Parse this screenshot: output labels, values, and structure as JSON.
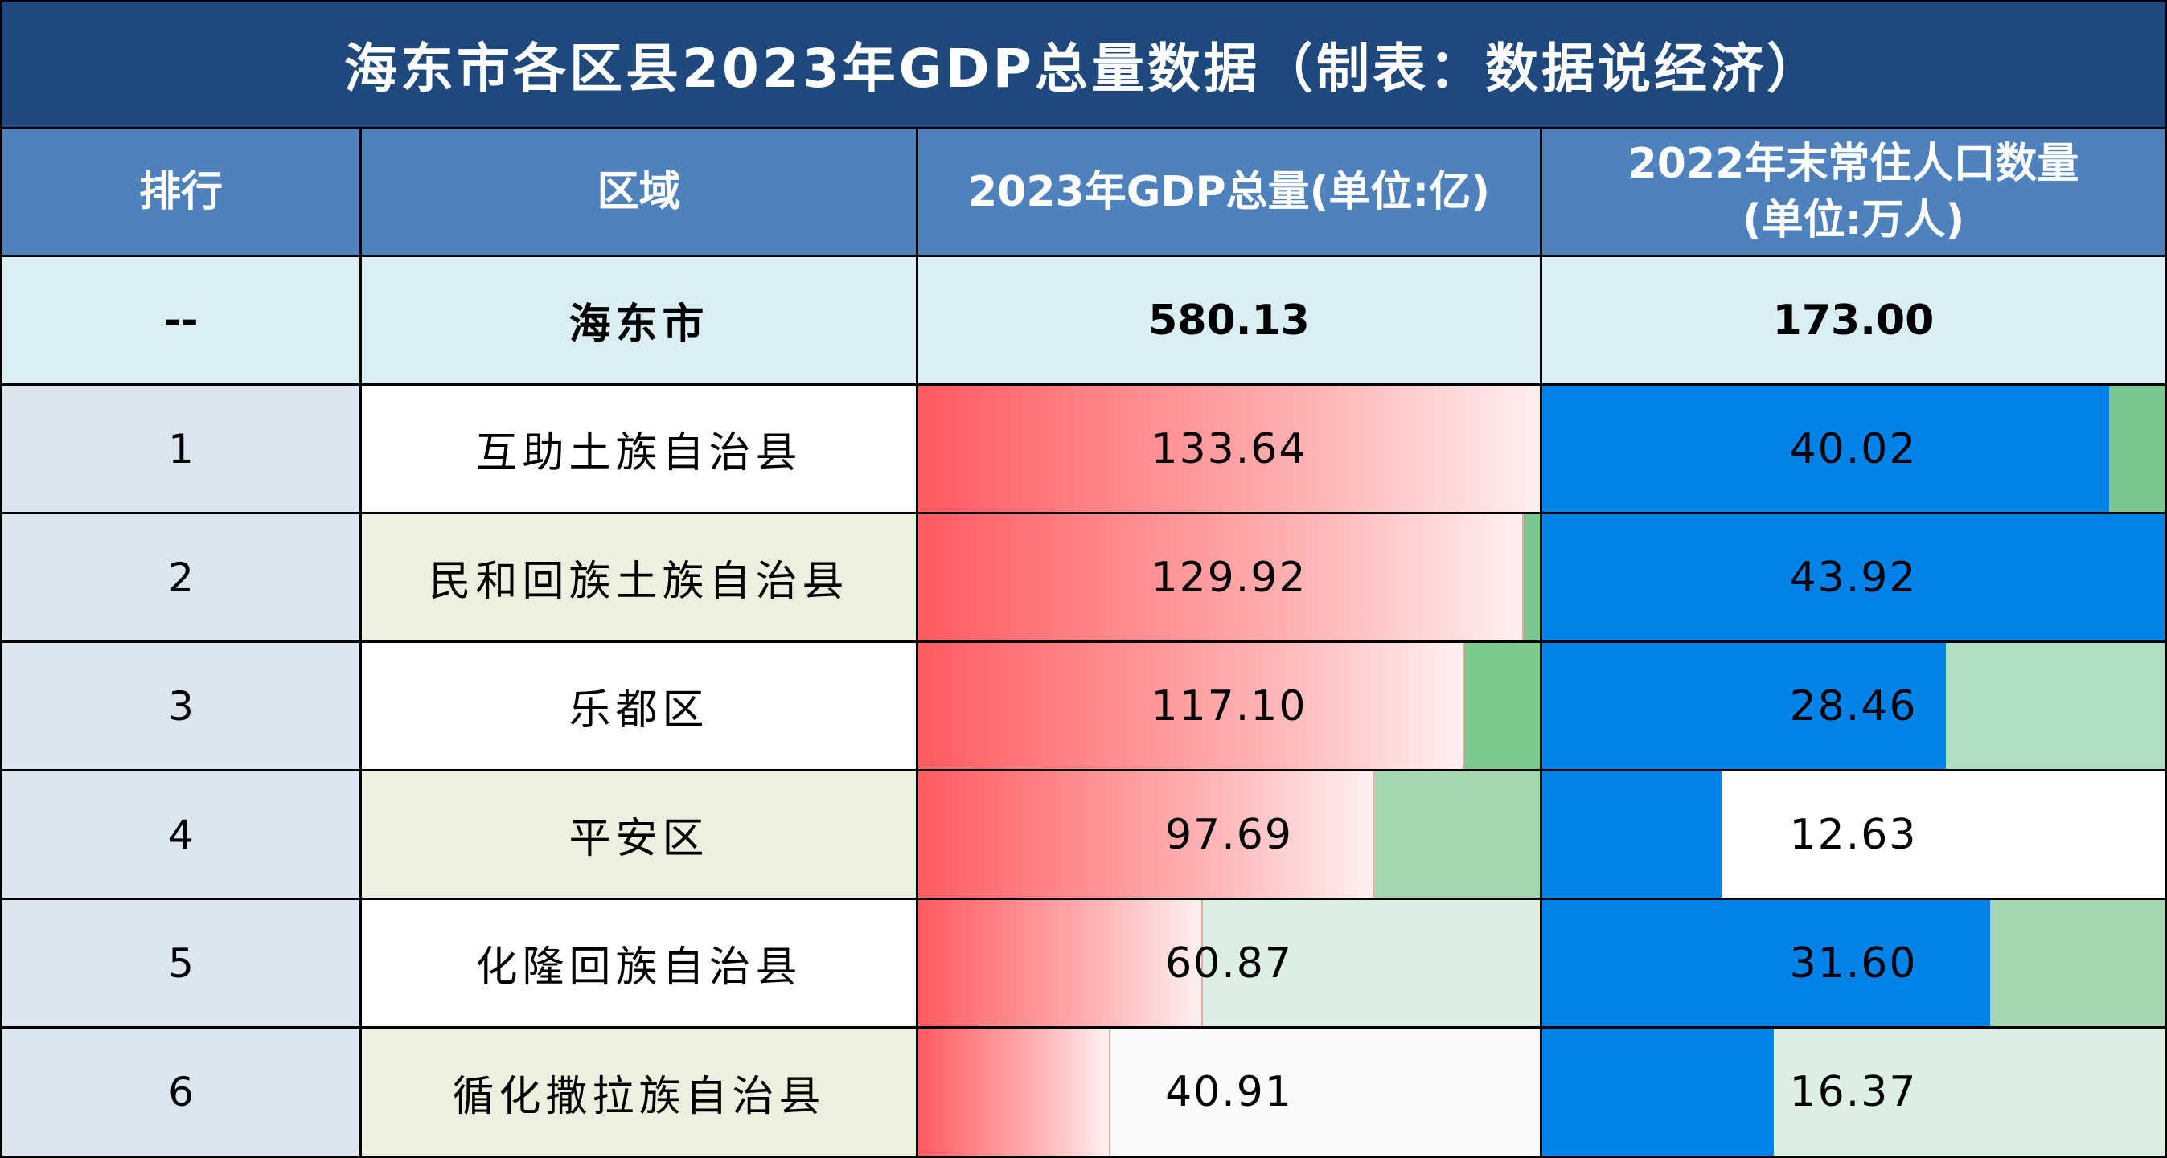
{
  "title": "海东市各区县2023年GDP总量数据（制表：数据说经济）",
  "headers": {
    "rank": "排行",
    "region": "区域",
    "gdp": "2023年GDP总量(单位:亿)",
    "pop_line1": "2022年末常住人口数量",
    "pop_line2": "(单位:万人)"
  },
  "total_row": {
    "rank": "--",
    "region": "海东市",
    "gdp": "580.13",
    "pop": "173.00"
  },
  "chart_data": {
    "type": "table",
    "columns": [
      "排行",
      "区域",
      "2023年GDP总量(单位:亿)",
      "2022年末常住人口数量(单位:万人)"
    ],
    "rows": [
      {
        "rank": "1",
        "region": "互助土族自治县",
        "gdp": 133.64,
        "gdp_text": "133.64",
        "pop": 40.02,
        "pop_text": "40.02"
      },
      {
        "rank": "2",
        "region": "民和回族土族自治县",
        "gdp": 129.92,
        "gdp_text": "129.92",
        "pop": 43.92,
        "pop_text": "43.92"
      },
      {
        "rank": "3",
        "region": "乐都区",
        "gdp": 117.1,
        "gdp_text": "117.10",
        "pop": 28.46,
        "pop_text": "28.46"
      },
      {
        "rank": "4",
        "region": "平安区",
        "gdp": 97.69,
        "gdp_text": "97.69",
        "pop": 12.63,
        "pop_text": "12.63"
      },
      {
        "rank": "5",
        "region": "化隆回族自治县",
        "gdp": 60.87,
        "gdp_text": "60.87",
        "pop": 31.6,
        "pop_text": "31.60"
      },
      {
        "rank": "6",
        "region": "循化撒拉族自治县",
        "gdp": 40.91,
        "gdp_text": "40.91",
        "pop": 16.37,
        "pop_text": "16.37"
      }
    ],
    "gdp_bar_max": 133.64,
    "pop_bar_max": 43.92
  },
  "colors": {
    "title_bg": "#1f497d",
    "header_bg": "#4f81bd",
    "total_bg": "#dbeef3",
    "rank_bg": "#dce6f1",
    "region_alt_bg": "#ebf1de",
    "gdp_bar": "#ff5b5f",
    "pop_bar": "#0083e8",
    "remainder_shades": [
      "#ffffff",
      "#79c68f",
      "#7cc88f",
      "#a2d8b0",
      "#dcefe3",
      "#f8fafc"
    ]
  }
}
